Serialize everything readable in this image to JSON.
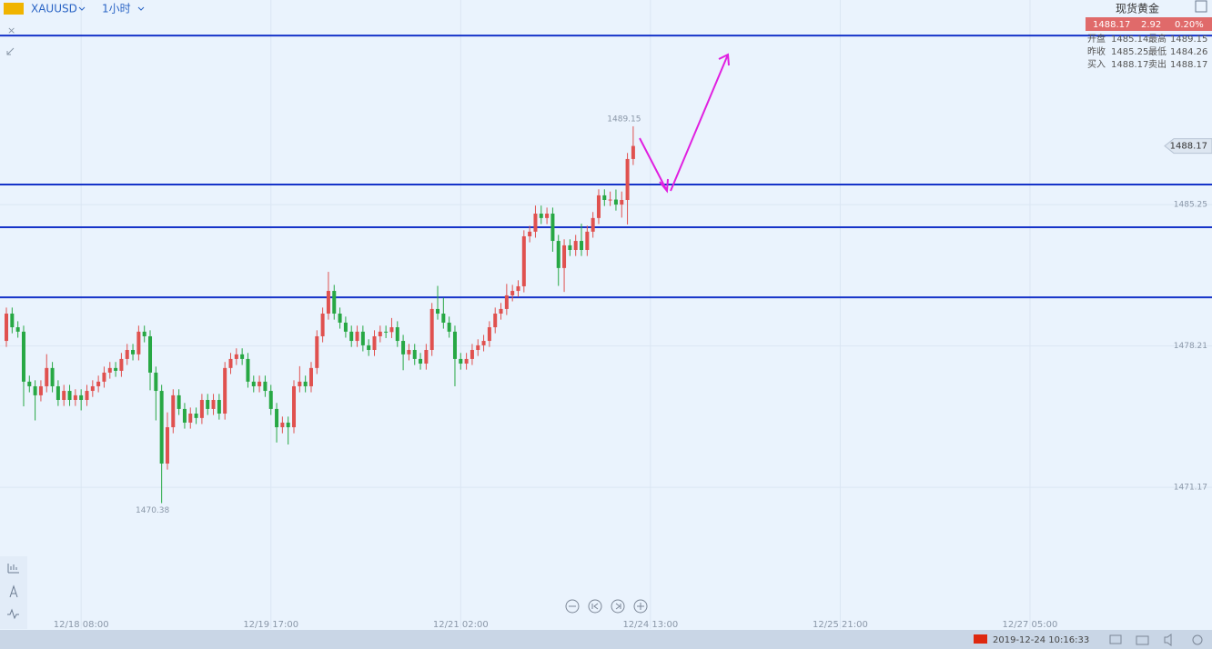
{
  "header": {
    "symbol": "XAUUSD",
    "interval": "1小时"
  },
  "quote": {
    "name": "现货黄金",
    "price": "1488.17",
    "change": "2.92",
    "change_pct": "0.20%",
    "rows": [
      [
        "开盘",
        "1485.14",
        "最高",
        "1489.15"
      ],
      [
        "昨收",
        "1485.25",
        "最低",
        "1484.26"
      ],
      [
        "买入",
        "1488.17",
        "卖出",
        "1488.17"
      ]
    ]
  },
  "chart_data": {
    "type": "candlestick",
    "open": [
      1478.46,
      1479.82,
      1479.14,
      1478.92,
      1476.43,
      1476.2,
      1475.75,
      1476.2,
      1477.11,
      1476.2,
      1475.52,
      1475.97,
      1475.52,
      1475.75,
      1475.52,
      1475.97,
      1476.2,
      1476.43,
      1476.88,
      1477.11,
      1476.97,
      1477.56,
      1478.01,
      1477.79,
      1478.92,
      1478.69,
      1476.88,
      1475.97,
      1472.35,
      1474.16,
      1475.75,
      1475.07,
      1474.39,
      1474.84,
      1474.62,
      1475.52,
      1475.07,
      1475.52,
      1474.84,
      1477.11,
      1477.56,
      1477.79,
      1477.56,
      1476.43,
      1476.2,
      1476.43,
      1475.97,
      1475.07,
      1474.16,
      1474.39,
      1474.16,
      1476.2,
      1476.43,
      1476.2,
      1477.11,
      1478.69,
      1479.82,
      1480.95,
      1479.82,
      1479.37,
      1478.92,
      1478.46,
      1478.92,
      1478.24,
      1478.01,
      1478.69,
      1478.92,
      1478.9,
      1479.14,
      1478.46,
      1477.79,
      1478.01,
      1477.56,
      1477.33,
      1478.01,
      1480.05,
      1479.82,
      1479.37,
      1478.92,
      1477.56,
      1477.33,
      1477.56,
      1478.01,
      1478.24,
      1478.46,
      1479.14,
      1479.82,
      1480.05,
      1480.73,
      1480.95,
      1481.18,
      1483.67,
      1483.9,
      1484.8,
      1484.58,
      1484.8,
      1483.44,
      1482.09,
      1483.22,
      1482.99,
      1483.44,
      1482.99,
      1483.9,
      1484.58,
      1485.71,
      1485.48,
      1485.5,
      1485.25,
      1485.48,
      1487.52
    ],
    "high": [
      1480.12,
      1480.12,
      1479.44,
      1479.22,
      1476.73,
      1476.5,
      1476.5,
      1477.8,
      1477.41,
      1476.5,
      1476.27,
      1476.27,
      1476.05,
      1476.05,
      1476.27,
      1476.5,
      1476.73,
      1477.18,
      1477.41,
      1477.41,
      1477.86,
      1478.31,
      1478.31,
      1479.22,
      1479.22,
      1478.99,
      1477.18,
      1476.27,
      1474.9,
      1476.05,
      1476.05,
      1475.37,
      1475.14,
      1475.14,
      1475.82,
      1475.82,
      1475.82,
      1475.82,
      1477.41,
      1477.86,
      1478.09,
      1478.09,
      1477.86,
      1476.73,
      1476.73,
      1476.73,
      1476.27,
      1475.37,
      1474.69,
      1474.69,
      1476.5,
      1477.2,
      1476.73,
      1477.41,
      1478.99,
      1480.12,
      1481.9,
      1481.25,
      1480.12,
      1479.67,
      1479.22,
      1479.22,
      1479.22,
      1478.54,
      1478.99,
      1479.22,
      1479.22,
      1479.6,
      1479.44,
      1478.76,
      1478.31,
      1478.31,
      1477.86,
      1478.31,
      1480.35,
      1481.2,
      1480.6,
      1479.67,
      1479.22,
      1477.86,
      1477.86,
      1478.31,
      1478.54,
      1478.76,
      1479.44,
      1480.12,
      1480.35,
      1481.3,
      1481.25,
      1481.48,
      1483.97,
      1484.2,
      1485.2,
      1485.2,
      1485.1,
      1485.1,
      1483.74,
      1483.52,
      1483.52,
      1483.74,
      1484.3,
      1484.2,
      1484.88,
      1486.01,
      1486.01,
      1485.9,
      1486.0,
      1485.9,
      1487.82,
      1489.15
    ],
    "low": [
      1478.16,
      1478.84,
      1478.62,
      1475.2,
      1475.9,
      1474.5,
      1475.45,
      1475.9,
      1475.9,
      1475.22,
      1475.22,
      1475.22,
      1475.22,
      1475.0,
      1475.22,
      1475.67,
      1475.9,
      1476.13,
      1476.58,
      1476.67,
      1476.67,
      1477.26,
      1477.49,
      1477.49,
      1478.39,
      1476.0,
      1474.5,
      1470.38,
      1472.05,
      1473.86,
      1474.77,
      1474.09,
      1474.09,
      1474.32,
      1474.32,
      1474.77,
      1474.77,
      1474.54,
      1474.54,
      1476.81,
      1477.26,
      1477.26,
      1476.13,
      1475.9,
      1475.9,
      1475.67,
      1474.77,
      1473.4,
      1473.86,
      1473.3,
      1473.86,
      1475.9,
      1475.9,
      1475.9,
      1476.81,
      1478.39,
      1479.52,
      1479.52,
      1479.07,
      1478.62,
      1478.16,
      1478.16,
      1477.94,
      1477.71,
      1477.71,
      1478.39,
      1478.6,
      1478.6,
      1478.16,
      1477.0,
      1477.49,
      1477.26,
      1477.03,
      1477.03,
      1477.71,
      1479.52,
      1479.07,
      1478.62,
      1476.2,
      1477.03,
      1477.03,
      1477.26,
      1477.71,
      1477.94,
      1478.16,
      1478.84,
      1479.52,
      1479.75,
      1480.43,
      1480.65,
      1480.88,
      1483.37,
      1483.6,
      1484.28,
      1484.28,
      1482.9,
      1481.2,
      1480.9,
      1482.69,
      1482.69,
      1482.69,
      1482.69,
      1483.6,
      1484.28,
      1485.18,
      1485.18,
      1484.95,
      1484.6,
      1484.26,
      1487.22
    ],
    "close": [
      1479.82,
      1479.14,
      1478.92,
      1476.43,
      1476.2,
      1475.75,
      1476.2,
      1477.11,
      1476.2,
      1475.52,
      1475.97,
      1475.52,
      1475.75,
      1475.52,
      1475.97,
      1476.2,
      1476.43,
      1476.88,
      1477.11,
      1476.97,
      1477.56,
      1478.01,
      1477.79,
      1478.92,
      1478.69,
      1476.88,
      1475.97,
      1472.35,
      1474.16,
      1475.75,
      1475.07,
      1474.39,
      1474.84,
      1474.62,
      1475.52,
      1475.07,
      1475.52,
      1474.84,
      1477.11,
      1477.56,
      1477.79,
      1477.56,
      1476.43,
      1476.2,
      1476.43,
      1475.97,
      1475.07,
      1474.16,
      1474.39,
      1474.16,
      1476.2,
      1476.43,
      1476.2,
      1477.11,
      1478.69,
      1479.82,
      1480.95,
      1479.82,
      1479.37,
      1478.92,
      1478.46,
      1478.92,
      1478.24,
      1478.01,
      1478.69,
      1478.92,
      1478.9,
      1479.14,
      1478.46,
      1477.79,
      1478.01,
      1477.56,
      1477.33,
      1478.01,
      1480.05,
      1479.82,
      1479.37,
      1478.92,
      1477.56,
      1477.33,
      1477.56,
      1478.01,
      1478.24,
      1478.46,
      1479.14,
      1479.82,
      1480.05,
      1480.73,
      1480.95,
      1481.18,
      1483.67,
      1483.9,
      1484.8,
      1484.58,
      1484.8,
      1483.44,
      1482.09,
      1483.22,
      1482.99,
      1483.44,
      1482.99,
      1483.9,
      1484.58,
      1485.71,
      1485.48,
      1485.5,
      1485.25,
      1485.48,
      1487.52,
      1488.17
    ],
    "up_color": "#e0514f",
    "down_color": "#27a844",
    "ylim": [
      1464.11,
      1495.44
    ],
    "yticks": [
      1471.17,
      1478.21,
      1485.25
    ],
    "xlim": [
      -1.11,
      209.65
    ],
    "xticks": [
      {
        "value": 13,
        "label": "12/18 08:00"
      },
      {
        "value": 46,
        "label": "12/19 17:00"
      },
      {
        "value": 79,
        "label": "12/21 02:00"
      },
      {
        "value": 112,
        "label": "12/24 13:00"
      },
      {
        "value": 145,
        "label": "12/25 21:00"
      },
      {
        "value": 178,
        "label": "12/27 05:00"
      }
    ],
    "grid": true,
    "last_price": 1488.17,
    "annotations": [
      {
        "index": 109,
        "value": 1489.15
      },
      {
        "index": 27,
        "value": 1470.38
      }
    ],
    "levels": {
      "values": [
        1493.67,
        1486.25,
        1484.12,
        1480.63
      ],
      "color": "#1533c9"
    }
  },
  "footer": {
    "datetime": "2019-12-24 10:16:33"
  }
}
